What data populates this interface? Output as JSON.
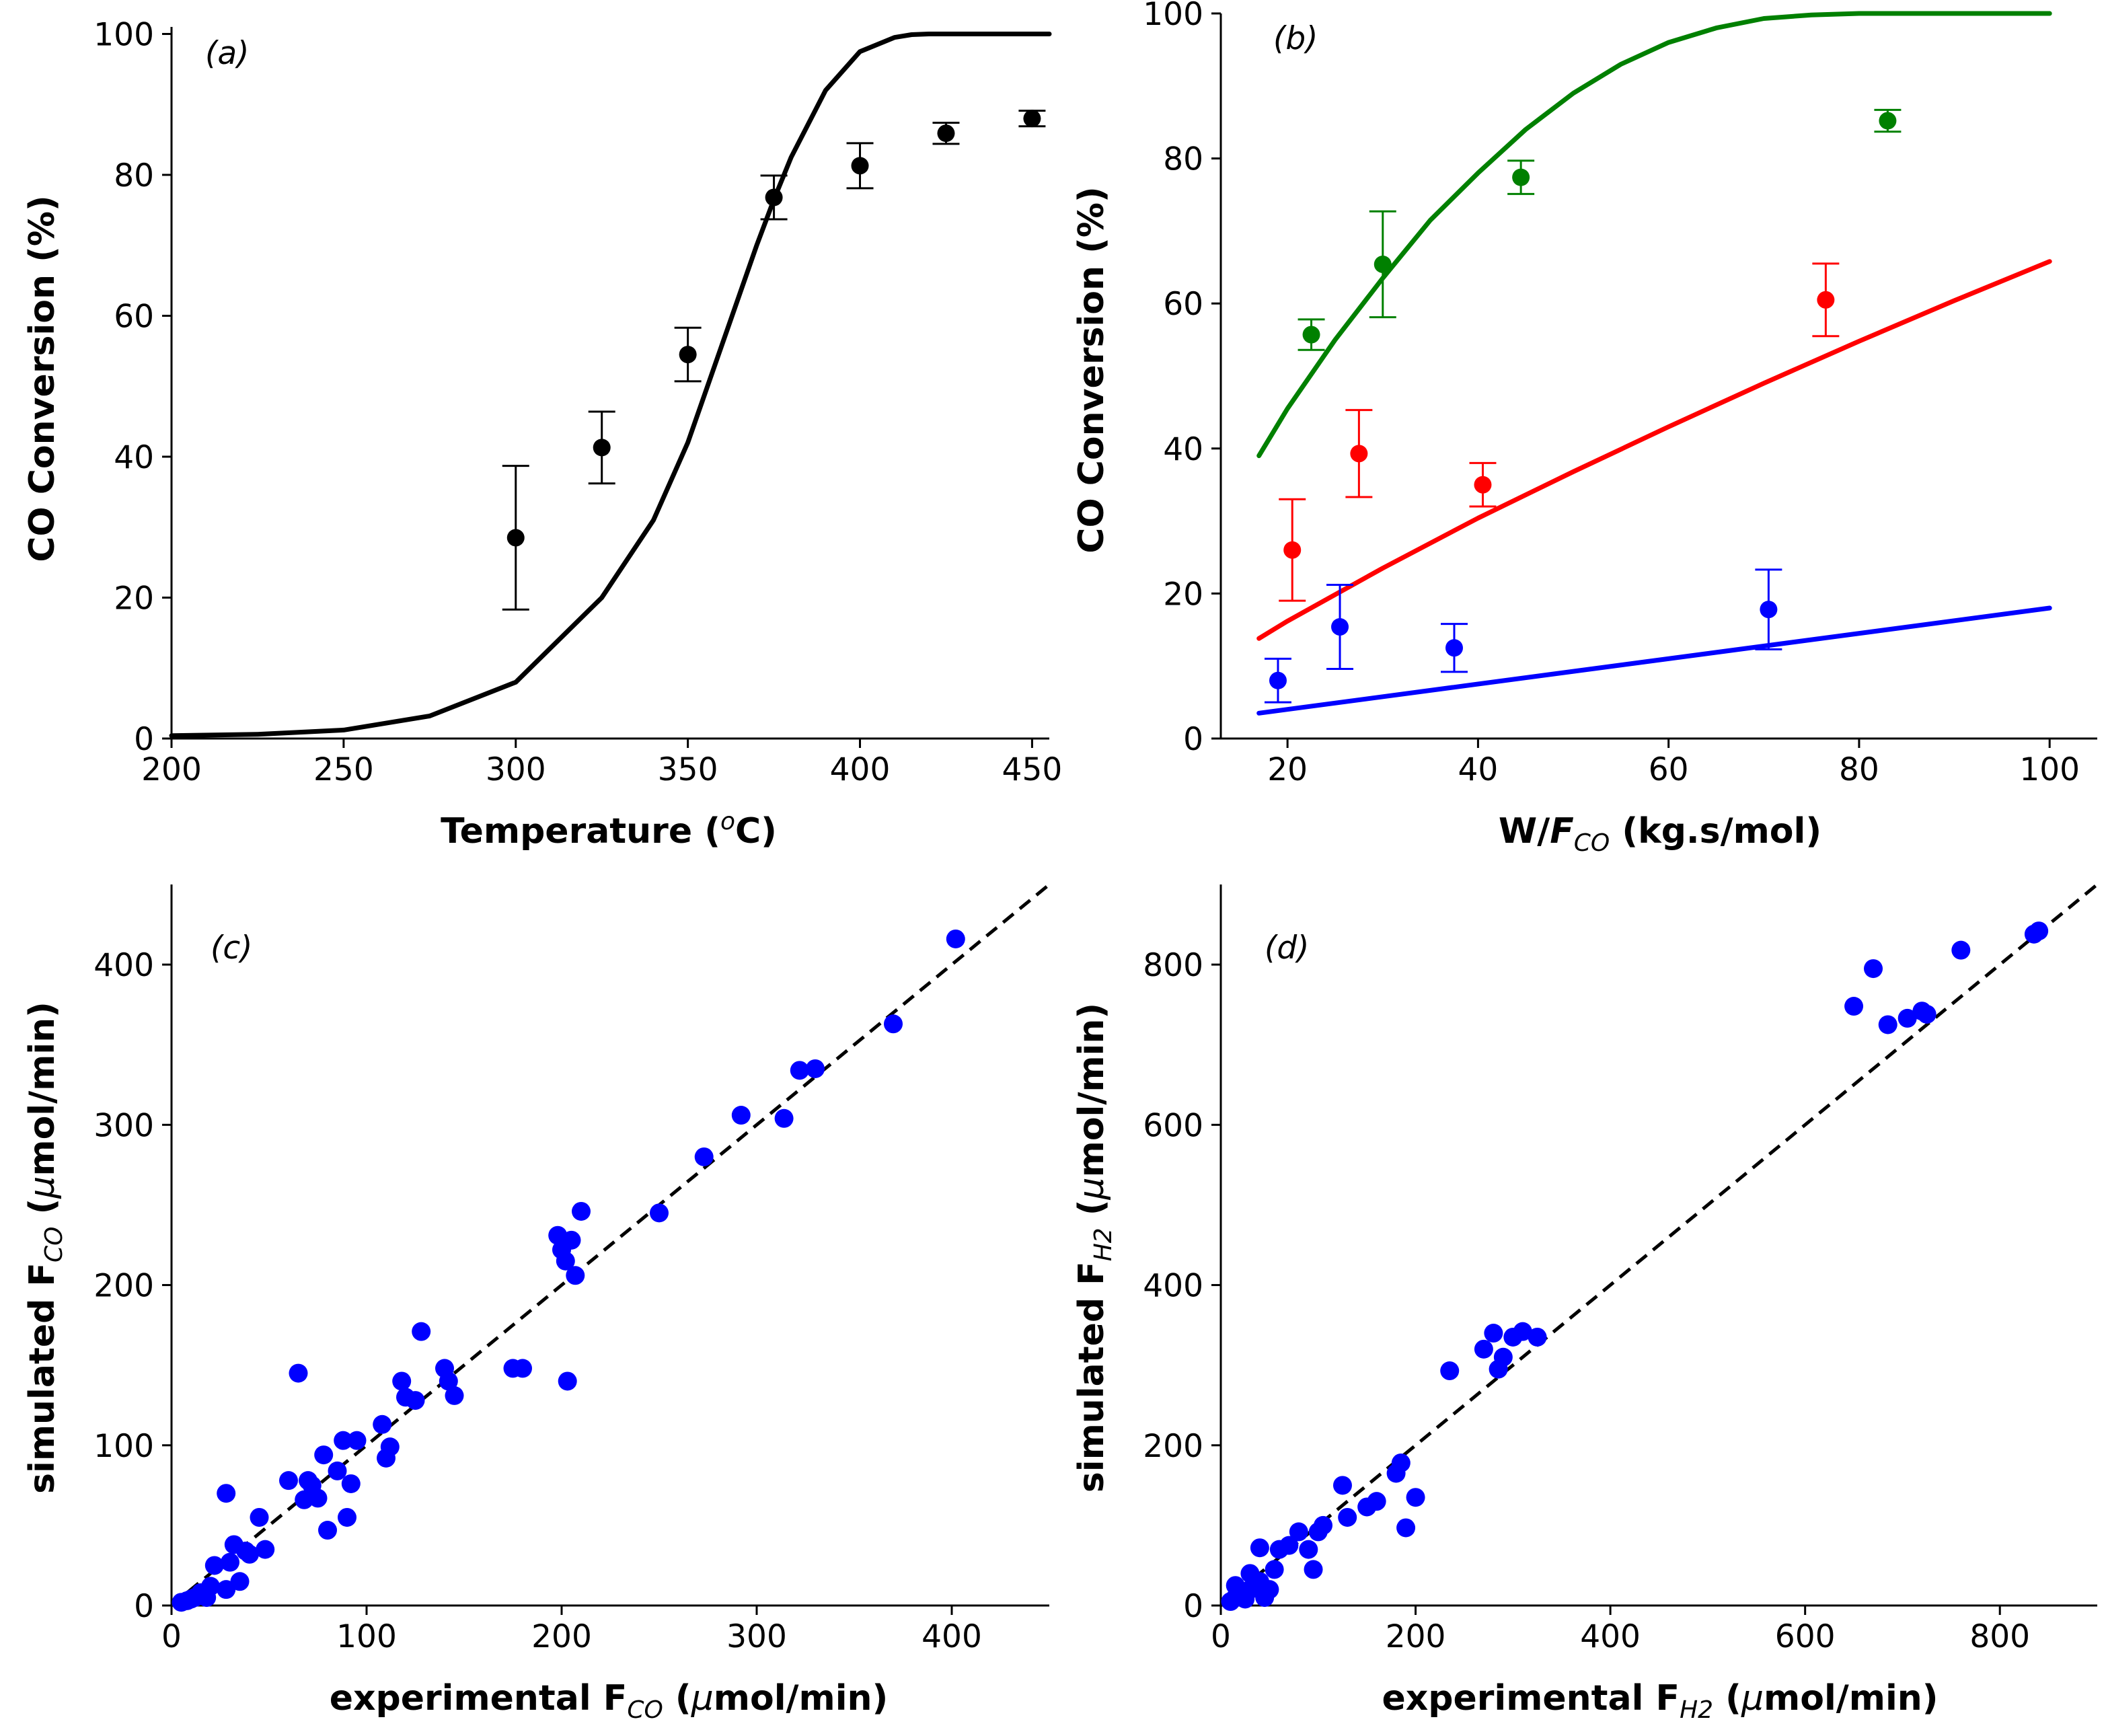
{
  "colors": {
    "black": "#000000",
    "green": "#008000",
    "red": "#ff0000",
    "blue": "#0000ff"
  },
  "chart_data": [
    {
      "id": "a",
      "type": "scatter",
      "panel_label": "(a)",
      "title": "",
      "xlabel_main": "Temperature (",
      "xlabel_sup": "o",
      "xlabel_tail": "C)",
      "ylabel": "CO Conversion (%)",
      "xlim": [
        200,
        455
      ],
      "ylim": [
        0,
        101
      ],
      "xticks": [
        200,
        250,
        300,
        350,
        400,
        450
      ],
      "yticks": [
        0,
        20,
        40,
        60,
        80,
        100
      ],
      "grid": false,
      "points": {
        "name": "experimental",
        "color": "#000000",
        "x": [
          300,
          325,
          350,
          375,
          400,
          425,
          450
        ],
        "y": [
          28.5,
          41.3,
          54.5,
          76.8,
          81.3,
          85.9,
          88.0
        ],
        "err": [
          10.2,
          5.1,
          3.8,
          3.1,
          3.2,
          1.5,
          1.1
        ]
      },
      "curve": {
        "name": "model",
        "color": "#000000",
        "x": [
          200,
          225,
          250,
          275,
          300,
          325,
          340,
          350,
          360,
          370,
          375,
          380,
          390,
          400,
          410,
          415,
          420,
          430,
          440,
          455
        ],
        "y": [
          0.4,
          0.6,
          1.2,
          3.2,
          8.0,
          20.0,
          31.0,
          42.0,
          56.0,
          70.0,
          76.5,
          82.5,
          92.0,
          97.5,
          99.5,
          99.9,
          100.0,
          100.0,
          100.0,
          100.0
        ]
      }
    },
    {
      "id": "b",
      "type": "scatter",
      "panel_label": "(b)",
      "title": "",
      "xlabel_pre": "W/",
      "xlabel_italic": "F",
      "xlabel_sub": "CO",
      "xlabel_post": " (kg.s/mol)",
      "ylabel": "CO Conversion (%)",
      "xlim": [
        13,
        105
      ],
      "ylim": [
        0,
        100
      ],
      "xticks": [
        20,
        40,
        60,
        80,
        100
      ],
      "yticks": [
        0,
        20,
        40,
        60,
        80,
        100
      ],
      "grid": false,
      "series": [
        {
          "name": "green",
          "color": "#008000",
          "points": {
            "x": [
              22.5,
              30.0,
              44.5,
              83.0
            ],
            "y": [
              55.7,
              65.4,
              77.4,
              85.2
            ],
            "err": [
              2.1,
              7.3,
              2.3,
              1.5
            ]
          },
          "curve": {
            "x": [
              17,
              20,
              25,
              30,
              35,
              40,
              45,
              50,
              55,
              60,
              65,
              70,
              75,
              80,
              85,
              90,
              100
            ],
            "y": [
              39.0,
              45.5,
              55.0,
              63.5,
              71.5,
              78.0,
              84.0,
              89.0,
              93.0,
              96.0,
              98.0,
              99.3,
              99.8,
              100.0,
              100.0,
              100.0,
              100.0
            ]
          }
        },
        {
          "name": "red",
          "color": "#ff0000",
          "points": {
            "x": [
              20.5,
              27.5,
              40.5,
              76.5
            ],
            "y": [
              26.0,
              39.3,
              35.0,
              60.5
            ],
            "err": [
              7.0,
              6.0,
              3.0,
              5.0
            ]
          },
          "curve": {
            "x": [
              17,
              20,
              30,
              40,
              50,
              60,
              70,
              80,
              90,
              100
            ],
            "y": [
              13.8,
              16.2,
              23.5,
              30.4,
              36.8,
              43.0,
              49.0,
              54.8,
              60.4,
              65.8
            ]
          }
        },
        {
          "name": "blue",
          "color": "#0000ff",
          "points": {
            "x": [
              19.0,
              25.5,
              37.5,
              70.5
            ],
            "y": [
              8.0,
              15.4,
              12.5,
              17.8
            ],
            "err": [
              3.0,
              5.8,
              3.3,
              5.5
            ]
          },
          "curve": {
            "x": [
              17,
              100
            ],
            "y": [
              3.5,
              18.0
            ]
          }
        }
      ]
    },
    {
      "id": "c",
      "type": "scatter",
      "panel_label": "(c)",
      "title": "",
      "xlabel_pre": "experimental F",
      "xlabel_sub": "CO",
      "xlabel_post": " (",
      "xlabel_mu": "μ",
      "xlabel_end": "mol/min)",
      "ylabel_pre": "simulated F",
      "ylabel_sub": "CO",
      "ylabel_post": " (",
      "ylabel_mu": "μ",
      "ylabel_end": "mol/min)",
      "xlim": [
        0,
        450
      ],
      "ylim": [
        0,
        450
      ],
      "xticks": [
        0,
        100,
        200,
        300,
        400
      ],
      "yticks": [
        0,
        100,
        200,
        300,
        400
      ],
      "grid": false,
      "diagonal": true,
      "points": {
        "color": "#0000ff",
        "x": [
          5,
          8,
          10,
          12,
          15,
          18,
          20,
          22,
          28,
          30,
          32,
          35,
          38,
          40,
          45,
          48,
          28,
          60,
          65,
          68,
          70,
          72,
          75,
          78,
          80,
          85,
          88,
          90,
          92,
          95,
          108,
          110,
          112,
          118,
          120,
          125,
          128,
          140,
          142,
          145,
          175,
          180,
          198,
          200,
          202,
          205,
          207,
          210,
          203,
          250,
          273,
          292,
          314,
          322,
          330,
          370,
          402
        ],
        "y": [
          2,
          3,
          4,
          5,
          8,
          5,
          12,
          25,
          10,
          27,
          38,
          15,
          34,
          32,
          55,
          35,
          70,
          78,
          145,
          66,
          78,
          75,
          67,
          94,
          47,
          84,
          103,
          55,
          76,
          103,
          113,
          92,
          99,
          140,
          130,
          128,
          171,
          148,
          140,
          131,
          148,
          148,
          231,
          222,
          215,
          228,
          206,
          246,
          140,
          245,
          280,
          306,
          304,
          334,
          335,
          363,
          416
        ]
      }
    },
    {
      "id": "d",
      "type": "scatter",
      "panel_label": "(d)",
      "title": "",
      "xlabel_pre": "experimental F",
      "xlabel_sub": "H2",
      "xlabel_post": " (",
      "xlabel_mu": "μ",
      "xlabel_end": "mol/min)",
      "ylabel_pre": "simulated F",
      "ylabel_sub": "H2",
      "ylabel_post": " (",
      "ylabel_mu": "μ",
      "ylabel_end": "mol/min)",
      "xlim": [
        0,
        900
      ],
      "ylim": [
        0,
        900
      ],
      "xticks": [
        0,
        200,
        400,
        600,
        800
      ],
      "yticks": [
        0,
        200,
        400,
        600,
        800
      ],
      "grid": false,
      "diagonal": true,
      "points": {
        "color": "#0000ff",
        "x": [
          10,
          15,
          20,
          25,
          30,
          35,
          40,
          45,
          50,
          15,
          30,
          40,
          55,
          60,
          70,
          80,
          90,
          95,
          100,
          105,
          125,
          130,
          150,
          160,
          180,
          185,
          190,
          200,
          235,
          270,
          280,
          285,
          290,
          300,
          310,
          325,
          650,
          670,
          685,
          705,
          720,
          725,
          760,
          835,
          840
        ],
        "y": [
          5,
          10,
          15,
          8,
          20,
          25,
          30,
          10,
          20,
          25,
          40,
          72,
          45,
          70,
          75,
          92,
          70,
          45,
          92,
          100,
          150,
          110,
          123,
          130,
          165,
          178,
          97,
          135,
          293,
          320,
          340,
          295,
          310,
          335,
          342,
          335,
          748,
          795,
          725,
          733,
          742,
          738,
          818,
          838,
          842
        ]
      }
    }
  ]
}
